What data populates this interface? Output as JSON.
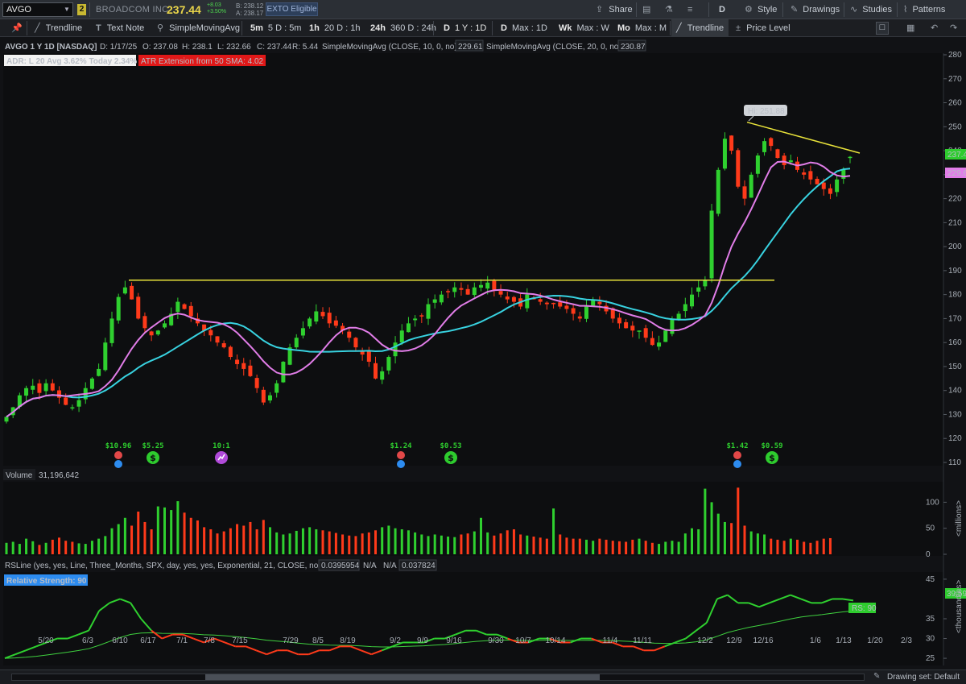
{
  "header": {
    "symbol": "AVGO",
    "link_group": "2",
    "company": "BROADCOM INC",
    "last": "237.44",
    "change": "+8.03",
    "change_pct": "+3.50%",
    "bid": "B: 238.12",
    "ask": "A: 238.17",
    "exto": "EXTO Eligible",
    "share": "Share",
    "period_letter": "D",
    "style": "Style",
    "drawings": "Drawings",
    "studies": "Studies",
    "patterns": "Patterns"
  },
  "toolbar": {
    "trendline": "Trendline",
    "text_note": "Text Note",
    "sma": "SimpleMovingAvg",
    "tf": [
      {
        "k": "5m",
        "v": "5 D : 5m"
      },
      {
        "k": "1h",
        "v": "20 D : 1h"
      },
      {
        "k": "24h",
        "v": "360 D : 24h"
      },
      {
        "k": "D",
        "v": "1 Y : 1D"
      },
      {
        "k": "D",
        "v": "Max : 1D"
      },
      {
        "k": "Wk",
        "v": "Max : W"
      },
      {
        "k": "Mo",
        "v": "Max : M"
      }
    ],
    "trendline2": "Trendline",
    "price_level": "Price Level"
  },
  "chart": {
    "info_title": "AVGO 1 Y 1D [NASDAQ]",
    "ohlc": [
      "D: 1/17/25",
      "O: 237.08",
      "H: 238.1",
      "L: 232.66",
      "C: 237.44",
      "R: 5.44"
    ],
    "sma10_label": "SimpleMovingAvg (CLOSE, 10, 0, no)",
    "sma10_value": "229.61",
    "sma20_label": "SimpleMovingAvg (CLOSE, 20, 0, no)",
    "sma20_value": "230.87",
    "adr_label": "ADR: L 20  Avg 3.62%  Today 2.34%",
    "atr_label": "ATR Extension from 50 SMA: 4.02",
    "hi_label": "Hi: 251.88",
    "price_tag": "237.44",
    "sma_tag": "229.61",
    "events": [
      {
        "label": "$10.96",
        "x": 147,
        "icon": "earnings"
      },
      {
        "label": "$5.25",
        "x": 190,
        "icon": "dividend"
      },
      {
        "label": "10:1",
        "x": 275,
        "icon": "split"
      },
      {
        "label": "$1.24",
        "x": 498,
        "icon": "earnings"
      },
      {
        "label": "$0.53",
        "x": 560,
        "icon": "dividend"
      },
      {
        "label": "$1.42",
        "x": 916,
        "icon": "earnings"
      },
      {
        "label": "$0.59",
        "x": 959,
        "icon": "dividend"
      }
    ]
  },
  "volume": {
    "label": "Volume",
    "value": "31,196,642",
    "unit": "<millions>"
  },
  "rs": {
    "study_label": "RSLine (yes, yes, Line, Three_Months, SPX, day, yes, yes, Exponential, 21, CLOSE, no, 0)",
    "v1": "0.0395954",
    "v2": "N/A",
    "v3": "N/A",
    "v4": "0.037824",
    "rs_badge": "Relative Strength: 90",
    "rs_value_tag": "39.5954",
    "rs_tag": "RS: 90",
    "unit": "<thousandths>"
  },
  "axes": {
    "price_ticks": [
      "280",
      "270",
      "260",
      "250",
      "240",
      "230",
      "220",
      "210",
      "200",
      "190",
      "180",
      "170",
      "160",
      "150",
      "140",
      "130",
      "120",
      "110"
    ],
    "volume_ticks": [
      "100",
      "50",
      "0"
    ],
    "rs_ticks": [
      "45",
      "35",
      "30",
      "25"
    ],
    "x_ticks": [
      "5/20",
      "6/3",
      "6/10",
      "6/17",
      "7/1",
      "7/8",
      "7/15",
      "7/29",
      "8/5",
      "8/19",
      "9/2",
      "9/9",
      "9/16",
      "9/30",
      "10/7",
      "10/14",
      "11/4",
      "11/11",
      "12/2",
      "12/9",
      "12/16",
      "1/6",
      "1/13",
      "1/20",
      "2/3"
    ]
  },
  "chart_data": {
    "type": "candlestick",
    "symbol": "AVGO",
    "period": "1 Y : 1D",
    "price_axis": [
      110,
      280
    ],
    "resistance_line": 186,
    "trendline": {
      "from": 251.88,
      "to": 239
    },
    "colors": {
      "up": "#2fd02f",
      "down": "#ff3a1a",
      "sma10": "#e17de8",
      "sma20": "#38d2e0",
      "line": "#e8e23a"
    },
    "closes": [
      129,
      133,
      138,
      141,
      142,
      139,
      143,
      140,
      137,
      134,
      133,
      136,
      141,
      145,
      149,
      160,
      170,
      179,
      183,
      178,
      170,
      166,
      163,
      165,
      168,
      172,
      177,
      174,
      171,
      168,
      165,
      163,
      160,
      158,
      154,
      151,
      149,
      146,
      141,
      135,
      138,
      143,
      152,
      158,
      162,
      166,
      170,
      173,
      171,
      168,
      167,
      165,
      162,
      158,
      155,
      152,
      145,
      148,
      154,
      160,
      165,
      168,
      170,
      171,
      176,
      178,
      180,
      181,
      183,
      182,
      180,
      183,
      184,
      185,
      182,
      180,
      178,
      177,
      175,
      180,
      178,
      177,
      176,
      176,
      175,
      174,
      172,
      170,
      175,
      178,
      176,
      173,
      170,
      168,
      166,
      165,
      165,
      162,
      159,
      160,
      165,
      170,
      172,
      176,
      180,
      183,
      186,
      215,
      232,
      245,
      240,
      225,
      220,
      230,
      238,
      244,
      242,
      237,
      234,
      236,
      232,
      230,
      228,
      226,
      224,
      222,
      228,
      232,
      237.44
    ],
    "volume_millions": [
      22,
      24,
      20,
      30,
      25,
      18,
      22,
      28,
      32,
      26,
      24,
      21,
      20,
      26,
      30,
      35,
      50,
      58,
      70,
      55,
      82,
      62,
      48,
      92,
      90,
      85,
      102,
      80,
      70,
      65,
      52,
      48,
      40,
      44,
      50,
      58,
      55,
      62,
      48,
      66,
      52,
      42,
      38,
      40,
      45,
      50,
      52,
      48,
      46,
      44,
      41,
      38,
      36,
      35,
      40,
      42,
      46,
      52,
      55,
      50,
      48,
      46,
      42,
      38,
      35,
      38,
      36,
      34,
      33,
      38,
      40,
      44,
      70,
      42,
      36,
      40,
      46,
      48,
      38,
      36,
      34,
      32,
      30,
      88,
      38,
      32,
      30,
      30,
      28,
      26,
      30,
      28,
      26,
      25,
      24,
      28,
      30,
      26,
      22,
      20,
      24,
      26,
      24,
      40,
      50,
      48,
      126,
      100,
      78,
      62,
      60,
      128,
      55,
      44,
      40,
      38,
      30,
      28,
      26,
      30,
      28,
      24,
      22,
      26,
      30,
      31
    ],
    "rs_values": [
      25,
      26,
      27,
      28,
      29,
      30,
      30,
      31,
      32,
      37,
      39,
      40,
      39,
      35,
      32,
      30,
      31,
      31,
      30,
      29,
      30,
      29,
      28,
      28,
      27,
      26,
      27,
      27,
      26,
      26,
      27,
      27,
      28,
      28,
      27,
      26,
      27,
      28,
      29,
      29,
      29,
      30,
      30,
      31,
      32,
      32,
      31,
      31,
      30,
      29,
      29,
      30,
      30,
      29,
      29,
      30,
      30,
      29,
      29,
      28,
      28,
      27,
      27,
      28,
      29,
      30,
      32,
      34,
      40,
      41,
      39,
      39,
      38,
      39,
      40,
      41,
      40,
      39,
      39,
      40,
      40,
      39.6
    ]
  }
}
